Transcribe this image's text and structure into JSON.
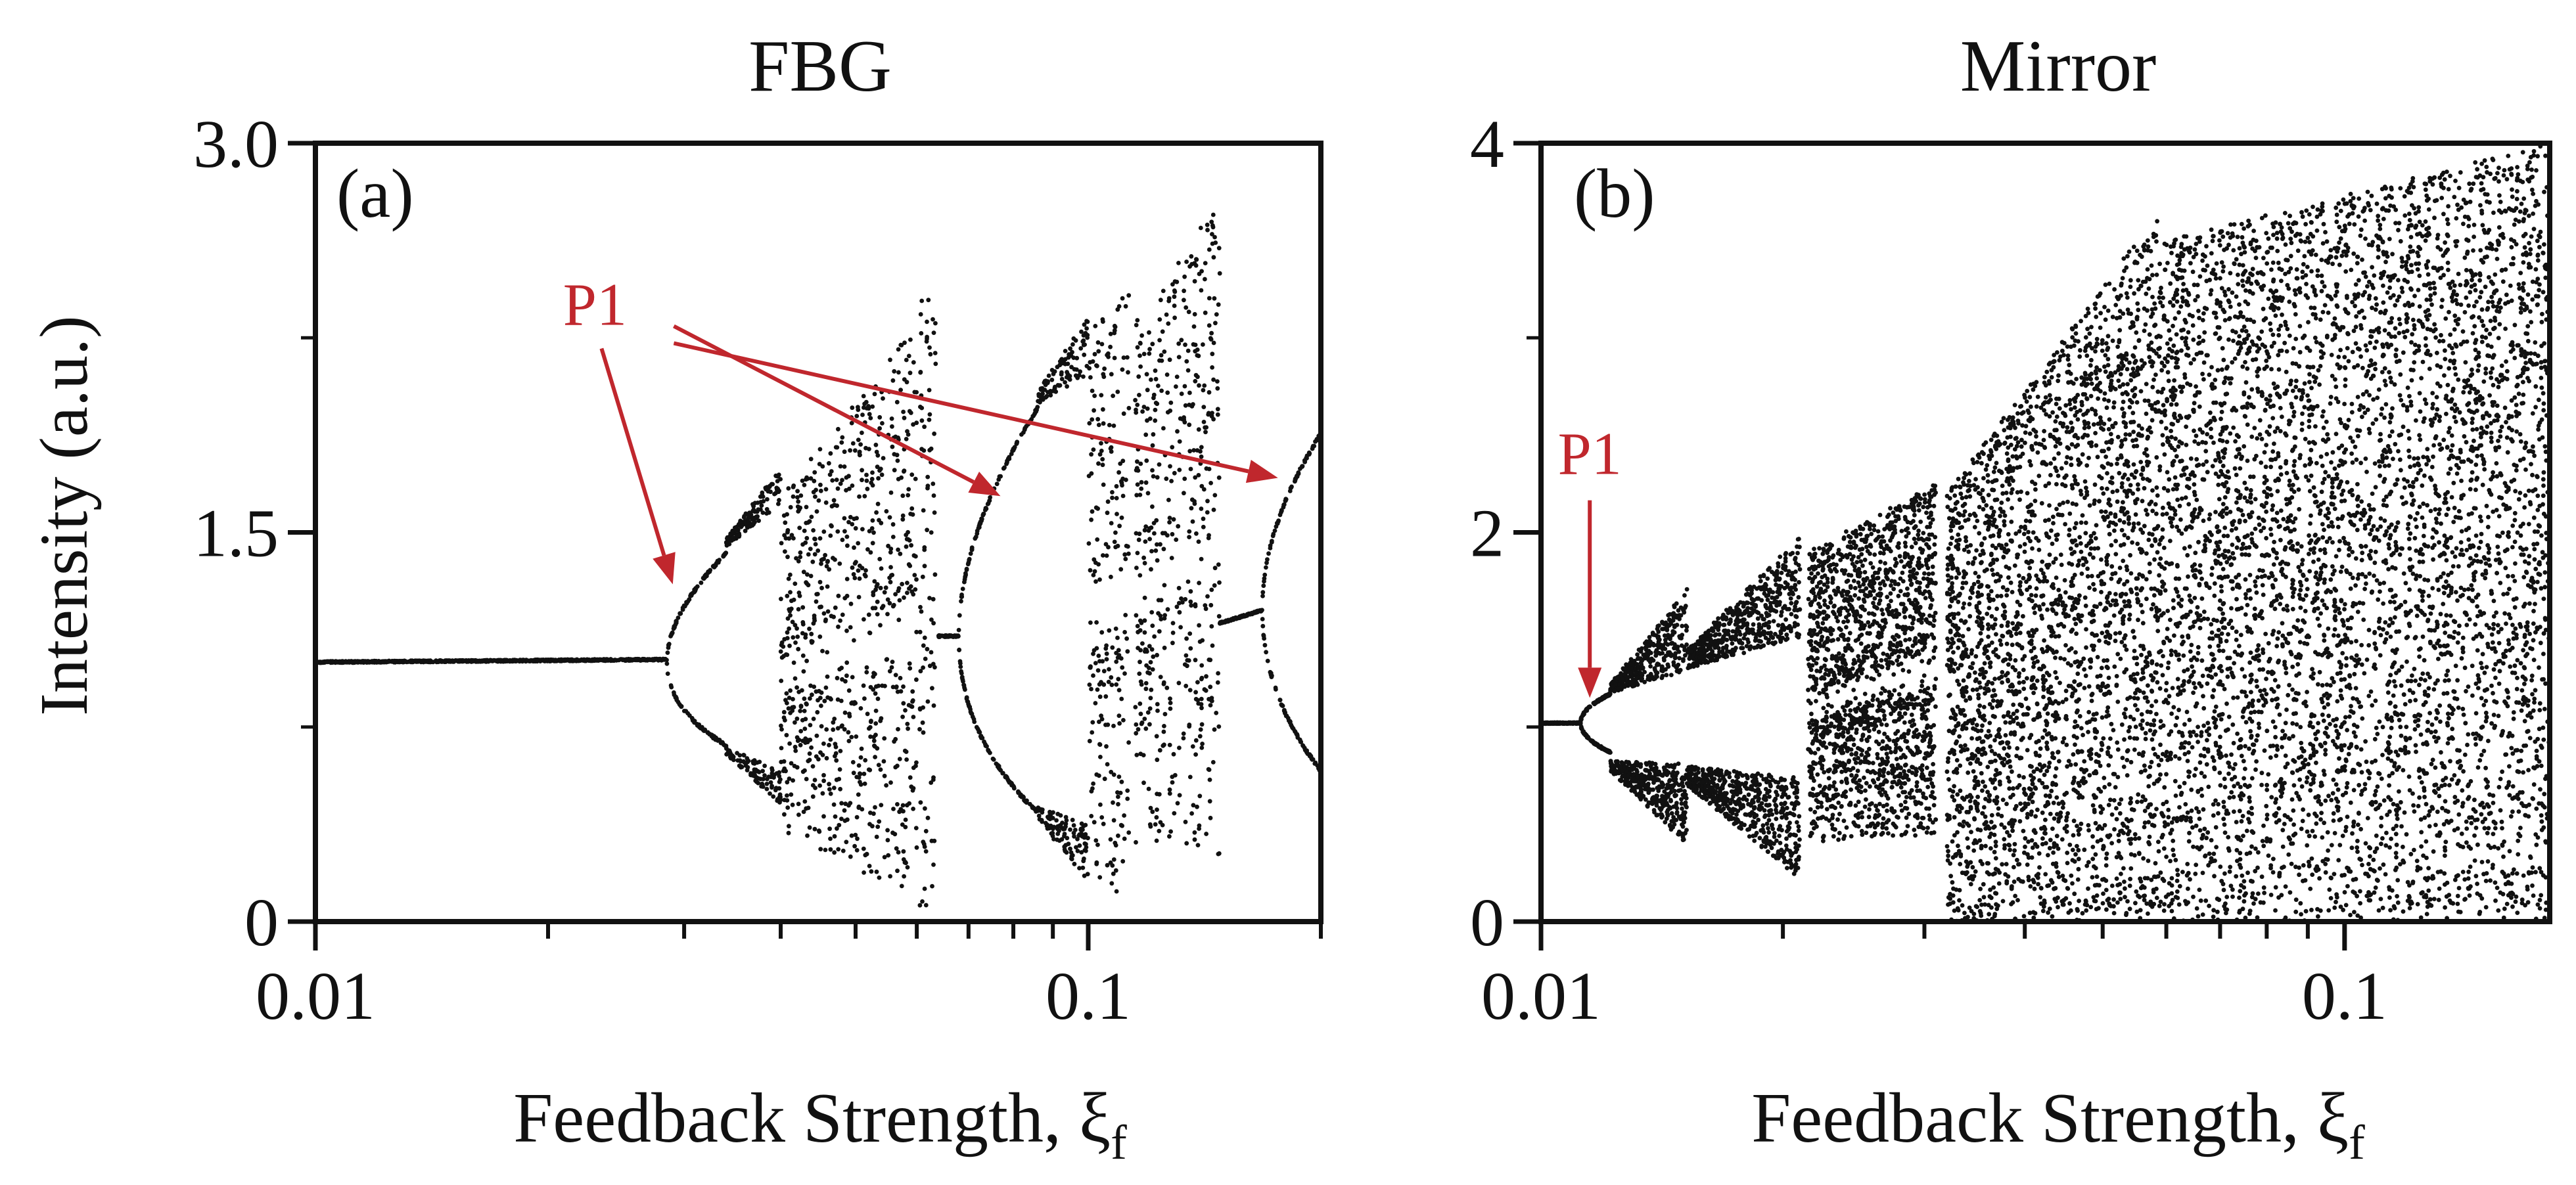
{
  "ylabel": "Intensity (a.u.)",
  "xlabel_base": "Feedback Strength, ξ",
  "xlabel_sub": "f",
  "colors": {
    "points": "#111111",
    "annotation": "#c0272d"
  },
  "chart_data": [
    {
      "type": "scatter",
      "panel": "(a)",
      "title": "FBG",
      "xscale": "log",
      "xlim": [
        0.01,
        0.2
      ],
      "ylim": [
        0,
        3.0
      ],
      "xticks": [
        0.01,
        0.1
      ],
      "xtick_labels": [
        "0.01",
        "0.1"
      ],
      "minor_xticks": [
        0.02,
        0.03,
        0.04,
        0.05,
        0.06,
        0.07,
        0.08,
        0.09,
        0.2
      ],
      "yticks": [
        0,
        1.5,
        3.0
      ],
      "ytick_labels": [
        "0",
        "1.5",
        "3.0"
      ],
      "annotation": {
        "text": "P1",
        "label_x": 0.023,
        "label_y": 2.3,
        "targets": [
          [
            0.029,
            1.3
          ],
          [
            0.077,
            1.64
          ],
          [
            0.176,
            1.71
          ]
        ]
      },
      "regimes": [
        {
          "kind": "fixed",
          "x0": 0.01,
          "x1": 0.0285,
          "y0": 1.0,
          "y1": 1.01
        },
        {
          "kind": "bifurcation",
          "x0": 0.0285,
          "x1": 0.034,
          "c0": 1.0,
          "c1": 1.05,
          "a0": 0.0,
          "a1": 0.37
        },
        {
          "kind": "torus",
          "x0": 0.034,
          "x1": 0.04,
          "c0": 1.06,
          "c1": 1.1,
          "a0": 0.4,
          "a1": 0.58,
          "w0": 0.03,
          "w1": 0.14
        },
        {
          "kind": "chaos",
          "x0": 0.04,
          "x1": 0.06,
          "lo0": 0.35,
          "lo1": 0.08,
          "hi0": 1.65,
          "hi1": 2.3,
          "gap": true
        },
        {
          "kind": "chaos",
          "x0": 0.0605,
          "x1": 0.0635,
          "lo0": 0.05,
          "lo1": 0.05,
          "hi0": 2.4,
          "hi1": 2.4,
          "gap": false
        },
        {
          "kind": "fixed",
          "x0": 0.064,
          "x1": 0.068,
          "y0": 1.1,
          "y1": 1.1
        },
        {
          "kind": "bifurcation",
          "x0": 0.068,
          "x1": 0.086,
          "c0": 1.1,
          "c1": 1.2,
          "a0": 0.0,
          "a1": 0.78
        },
        {
          "kind": "torus",
          "x0": 0.086,
          "x1": 0.1,
          "c0": 1.22,
          "c1": 1.24,
          "a0": 0.8,
          "a1": 0.98,
          "w0": 0.05,
          "w1": 0.22
        },
        {
          "kind": "chaos",
          "x0": 0.1,
          "x1": 0.113,
          "lo0": 0.15,
          "lo1": 0.1,
          "hi0": 2.3,
          "hi1": 2.45,
          "gap": true
        },
        {
          "kind": "chaos",
          "x0": 0.115,
          "x1": 0.13,
          "lo0": 0.25,
          "lo1": 0.3,
          "hi0": 2.35,
          "hi1": 2.5,
          "gap": true
        },
        {
          "kind": "chaos",
          "x0": 0.13,
          "x1": 0.148,
          "lo0": 0.3,
          "lo1": 0.25,
          "hi0": 2.6,
          "hi1": 2.75,
          "gap": true
        },
        {
          "kind": "fixed",
          "x0": 0.148,
          "x1": 0.168,
          "y0": 1.15,
          "y1": 1.2
        },
        {
          "kind": "bifurcation",
          "x0": 0.168,
          "x1": 0.2,
          "c0": 1.2,
          "c1": 1.23,
          "a0": 0.0,
          "a1": 0.65
        }
      ]
    },
    {
      "type": "scatter",
      "panel": "(b)",
      "title": "Mirror",
      "xscale": "log",
      "xlim": [
        0.01,
        0.18
      ],
      "ylim": [
        0,
        4
      ],
      "xticks": [
        0.01,
        0.1
      ],
      "xtick_labels": [
        "0.01",
        "0.1"
      ],
      "minor_xticks": [
        0.02,
        0.03,
        0.04,
        0.05,
        0.06,
        0.07,
        0.08,
        0.09
      ],
      "yticks": [
        0,
        2,
        4
      ],
      "ytick_labels": [
        "0",
        "2",
        "4"
      ],
      "annotation": {
        "text": "P1",
        "label_x": 0.0115,
        "label_y": 2.3,
        "targets": [
          [
            0.0115,
            1.15
          ]
        ]
      },
      "regimes": [
        {
          "kind": "fixed",
          "x0": 0.01,
          "x1": 0.0112,
          "y0": 1.02,
          "y1": 1.02
        },
        {
          "kind": "bifurcation",
          "x0": 0.0112,
          "x1": 0.0122,
          "c0": 1.02,
          "c1": 1.02,
          "a0": 0.0,
          "a1": 0.15
        },
        {
          "kind": "torus",
          "x0": 0.0122,
          "x1": 0.0152,
          "c0": 1.0,
          "c1": 1.05,
          "a0": 0.2,
          "a1": 0.45,
          "w0": 0.05,
          "w1": 0.42
        },
        {
          "kind": "torus",
          "x0": 0.0152,
          "x1": 0.021,
          "c0": 1.05,
          "c1": 1.1,
          "a0": 0.3,
          "a1": 0.62,
          "w0": 0.1,
          "w1": 0.52
        },
        {
          "kind": "chaos",
          "x0": 0.0215,
          "x1": 0.031,
          "lo0": 0.4,
          "lo1": 0.45,
          "hi0": 1.9,
          "hi1": 2.25,
          "gap": true
        },
        {
          "kind": "chaos",
          "x0": 0.032,
          "x1": 0.06,
          "lo0": 0.0,
          "lo1": 0.0,
          "hi0": 2.2,
          "hi1": 3.7,
          "gap": false
        },
        {
          "kind": "chaos",
          "x0": 0.06,
          "x1": 0.18,
          "lo0": 0.0,
          "lo1": 0.0,
          "hi0": 3.5,
          "hi1": 4.0,
          "gap": false
        }
      ]
    }
  ]
}
